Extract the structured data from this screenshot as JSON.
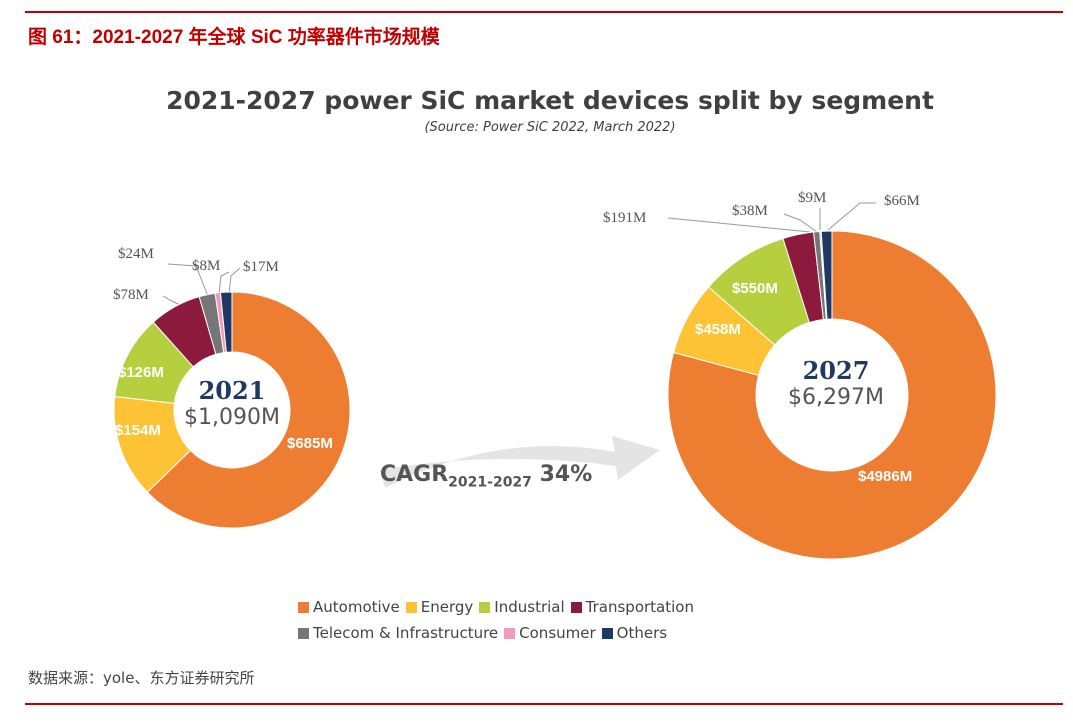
{
  "figure_title": "图 61：2021-2027 年全球 SiC 功率器件市场规模",
  "source_note": "数据来源：yole、东方证券研究所",
  "chart_data": {
    "type": "pie",
    "title": "2021-2027 power SiC market devices split by segment",
    "subtitle": "(Source: Power SiC 2022, March 2022)",
    "categories": [
      "Automotive",
      "Energy",
      "Industrial",
      "Transportation",
      "Telecom & Infrastructure",
      "Consumer",
      "Others"
    ],
    "colors": [
      "#ed7d31",
      "#fec334",
      "#b5cf3e",
      "#8b1a3d",
      "#767676",
      "#f09bbd",
      "#1f3864"
    ],
    "charts": [
      {
        "year": "2021",
        "total": "$1,090M",
        "values": [
          685,
          154,
          126,
          78,
          24,
          8,
          17
        ],
        "labels": [
          "$685M",
          "$154M",
          "$126M",
          "$78M",
          "$24M",
          "$8M",
          "$17M"
        ]
      },
      {
        "year": "2027",
        "total": "$6,297M",
        "values": [
          4986,
          458,
          550,
          191,
          38,
          9,
          66
        ],
        "labels": [
          "$4986M",
          "$458M",
          "$550M",
          "$191M",
          "$38M",
          "$9M",
          "$66M"
        ]
      }
    ],
    "cagr": {
      "prefix": "CAGR",
      "period": "2021-2027",
      "value": "34%"
    },
    "legend_placement": "bottom"
  }
}
